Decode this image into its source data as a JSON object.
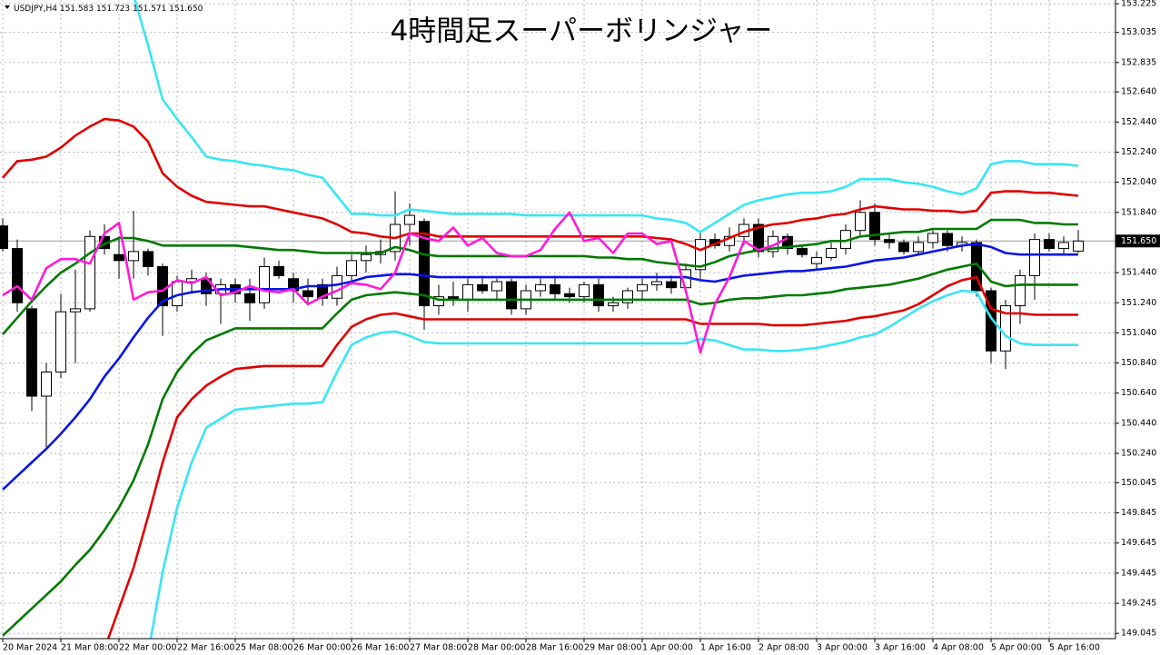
{
  "chart_data": {
    "type": "candlestick",
    "title": "4時間足スーパーボリンジャー",
    "symbol": "USDJPY,H4",
    "header_ohlc": [
      "151.583",
      "151.723",
      "151.571",
      "151.650"
    ],
    "categories": [
      "20 Mar 2024",
      null,
      null,
      null,
      "21 Mar 08:00",
      null,
      null,
      null,
      "22 Mar 00:00",
      null,
      null,
      null,
      "22 Mar 16:00",
      null,
      null,
      null,
      "25 Mar 08:00",
      null,
      null,
      null,
      "26 Mar 00:00",
      null,
      null,
      null,
      "26 Mar 16:00",
      null,
      null,
      null,
      "27 Mar 08:00",
      null,
      null,
      null,
      "28 Mar 00:00",
      null,
      null,
      null,
      "28 Mar 16:00",
      null,
      null,
      null,
      "29 Mar 08:00",
      null,
      null,
      null,
      "1 Apr 00:00",
      null,
      null,
      null,
      "1 Apr 16:00",
      null,
      null,
      null,
      "2 Apr 08:00",
      null,
      null,
      null,
      "3 Apr 00:00",
      null,
      null,
      null,
      "3 Apr 16:00",
      null,
      null,
      null,
      "4 Apr 08:00",
      null,
      null,
      null,
      "5 Apr 00:00",
      null,
      null,
      null,
      "5 Apr 16:00",
      null,
      null
    ],
    "open": [
      151.75,
      151.6,
      151.2,
      150.62,
      150.78,
      151.18,
      151.2,
      151.68,
      151.56,
      151.52,
      151.58,
      151.48,
      151.22,
      151.38,
      151.4,
      151.3,
      151.36,
      151.3,
      151.24,
      151.48,
      151.4,
      151.32,
      151.36,
      151.27,
      151.42,
      151.52,
      151.56,
      151.58,
      151.76,
      151.78,
      151.22,
      151.28,
      151.26,
      151.36,
      151.32,
      151.38,
      151.2,
      151.32,
      151.36,
      151.3,
      151.28,
      151.36,
      151.22,
      151.24,
      151.32,
      151.36,
      151.38,
      151.34,
      151.46,
      151.66,
      151.62,
      151.68,
      151.76,
      151.58,
      151.68,
      151.6,
      151.5,
      151.54,
      151.6,
      151.72,
      151.84,
      151.66,
      151.64,
      151.58,
      151.64,
      151.7,
      151.62,
      151.64,
      151.32,
      150.92,
      151.22,
      151.42,
      151.66,
      151.6,
      151.583
    ],
    "high": [
      151.8,
      151.66,
      151.22,
      150.84,
      151.3,
      151.46,
      151.72,
      151.76,
      151.68,
      151.85,
      151.6,
      151.5,
      151.42,
      151.46,
      151.44,
      151.4,
      151.4,
      151.4,
      151.54,
      151.52,
      151.44,
      151.4,
      151.4,
      151.48,
      151.56,
      151.62,
      151.66,
      151.98,
      151.9,
      151.8,
      151.36,
      151.38,
      151.4,
      151.42,
      151.4,
      151.4,
      151.36,
      151.4,
      151.42,
      151.34,
      151.38,
      151.4,
      151.28,
      151.34,
      151.4,
      151.44,
      151.42,
      151.5,
      151.72,
      151.7,
      151.74,
      151.8,
      151.8,
      151.72,
      151.7,
      151.62,
      151.58,
      151.64,
      151.76,
      151.92,
      151.9,
      151.7,
      151.66,
      151.68,
      151.72,
      151.72,
      151.68,
      151.66,
      151.34,
      151.26,
      151.46,
      151.7,
      151.7,
      151.68,
      151.723
    ],
    "low": [
      151.58,
      151.18,
      150.52,
      150.28,
      150.74,
      150.84,
      151.18,
      151.56,
      151.4,
      151.4,
      151.42,
      151.02,
      151.18,
      151.3,
      151.22,
      151.1,
      151.24,
      151.12,
      151.2,
      151.4,
      151.24,
      151.24,
      151.22,
      151.22,
      151.36,
      151.44,
      151.5,
      151.52,
      151.62,
      151.06,
      151.16,
      151.22,
      151.18,
      151.3,
      151.26,
      151.16,
      151.16,
      151.28,
      151.26,
      151.24,
      151.24,
      151.18,
      151.18,
      151.2,
      151.26,
      151.32,
      151.3,
      151.3,
      151.4,
      151.6,
      151.58,
      151.62,
      151.54,
      151.54,
      151.56,
      151.54,
      151.46,
      151.52,
      151.56,
      151.68,
      151.62,
      151.6,
      151.56,
      151.56,
      151.6,
      151.58,
      151.58,
      151.28,
      150.84,
      150.8,
      151.1,
      151.26,
      151.58,
      151.56,
      151.571
    ],
    "close": [
      151.6,
      151.24,
      150.62,
      150.78,
      151.18,
      151.2,
      151.68,
      151.6,
      151.52,
      151.58,
      151.48,
      151.22,
      151.38,
      151.4,
      151.3,
      151.36,
      151.3,
      151.24,
      151.48,
      151.42,
      151.32,
      151.28,
      151.27,
      151.42,
      151.52,
      151.56,
      151.58,
      151.76,
      151.82,
      151.22,
      151.28,
      151.26,
      151.36,
      151.32,
      151.38,
      151.2,
      151.32,
      151.36,
      151.3,
      151.28,
      151.36,
      151.22,
      151.24,
      151.32,
      151.36,
      151.38,
      151.34,
      151.46,
      151.66,
      151.62,
      151.68,
      151.76,
      151.58,
      151.68,
      151.6,
      151.56,
      151.54,
      151.6,
      151.72,
      151.84,
      151.66,
      151.64,
      151.58,
      151.64,
      151.7,
      151.62,
      151.64,
      151.32,
      150.92,
      151.22,
      151.42,
      151.66,
      151.6,
      151.64,
      151.65
    ],
    "up_color": "#ffffff",
    "down_color": "#000000",
    "lines": [
      {
        "color": "#38e6f4",
        "values": [
          null,
          null,
          null,
          null,
          null,
          null,
          null,
          null,
          null,
          153.28,
          152.95,
          152.59,
          152.46,
          152.34,
          152.21,
          152.19,
          152.18,
          152.16,
          152.15,
          152.13,
          152.12,
          152.09,
          152.07,
          151.95,
          151.83,
          151.83,
          151.82,
          151.82,
          151.86,
          151.85,
          151.84,
          151.83,
          151.83,
          151.83,
          151.83,
          151.83,
          151.82,
          151.82,
          151.82,
          151.82,
          151.82,
          151.82,
          151.82,
          151.82,
          151.82,
          151.8,
          151.79,
          151.77,
          151.71,
          151.77,
          151.83,
          151.89,
          151.92,
          151.94,
          151.96,
          151.97,
          151.97,
          151.98,
          152.01,
          152.06,
          152.06,
          152.06,
          152.04,
          152.03,
          152.01,
          151.98,
          151.96,
          152.0,
          152.16,
          152.18,
          152.18,
          152.16,
          152.16,
          152.16,
          152.15
        ]
      },
      {
        "color": "#e00000",
        "values": [
          152.07,
          152.18,
          152.19,
          152.21,
          152.27,
          152.35,
          152.41,
          152.46,
          152.45,
          152.41,
          152.31,
          152.1,
          152.01,
          151.95,
          151.91,
          151.9,
          151.89,
          151.88,
          151.88,
          151.86,
          151.84,
          151.82,
          151.8,
          151.76,
          151.71,
          151.7,
          151.68,
          151.67,
          151.7,
          151.7,
          151.68,
          151.68,
          151.68,
          151.68,
          151.68,
          151.68,
          151.68,
          151.68,
          151.68,
          151.68,
          151.68,
          151.68,
          151.68,
          151.68,
          151.68,
          151.67,
          151.66,
          151.63,
          151.59,
          151.63,
          151.67,
          151.71,
          151.74,
          151.76,
          151.77,
          151.79,
          151.8,
          151.82,
          151.83,
          151.86,
          151.88,
          151.87,
          151.86,
          151.86,
          151.85,
          151.85,
          151.84,
          151.85,
          151.97,
          151.98,
          151.98,
          151.97,
          151.97,
          151.96,
          151.95
        ]
      },
      {
        "color": "#007a00",
        "values": [
          151.03,
          151.14,
          151.25,
          151.35,
          151.44,
          151.5,
          151.57,
          151.63,
          151.67,
          151.67,
          151.65,
          151.62,
          151.62,
          151.62,
          151.62,
          151.62,
          151.62,
          151.61,
          151.6,
          151.59,
          151.59,
          151.58,
          151.57,
          151.57,
          151.57,
          151.57,
          151.57,
          151.61,
          151.59,
          151.56,
          151.55,
          151.55,
          151.55,
          151.55,
          151.55,
          151.55,
          151.55,
          151.55,
          151.55,
          151.55,
          151.55,
          151.54,
          151.54,
          151.53,
          151.53,
          151.51,
          151.5,
          151.49,
          151.48,
          151.51,
          151.55,
          151.57,
          151.59,
          151.6,
          151.61,
          151.62,
          151.63,
          151.65,
          151.65,
          151.68,
          151.69,
          151.7,
          151.71,
          151.71,
          151.73,
          151.73,
          151.73,
          151.73,
          151.79,
          151.79,
          151.79,
          151.77,
          151.77,
          151.76,
          151.76
        ]
      },
      {
        "color": "#0a14e6",
        "values": [
          150.0,
          150.09,
          150.18,
          150.27,
          150.37,
          150.48,
          150.6,
          150.75,
          150.87,
          151.01,
          151.14,
          151.25,
          151.29,
          151.31,
          151.32,
          151.33,
          151.33,
          151.33,
          151.33,
          151.33,
          151.33,
          151.35,
          151.35,
          151.36,
          151.38,
          151.41,
          151.42,
          151.43,
          151.43,
          151.42,
          151.41,
          151.41,
          151.41,
          151.41,
          151.41,
          151.41,
          151.41,
          151.41,
          151.41,
          151.41,
          151.41,
          151.41,
          151.41,
          151.41,
          151.41,
          151.41,
          151.41,
          151.41,
          151.39,
          151.38,
          151.4,
          151.42,
          151.43,
          151.44,
          151.45,
          151.45,
          151.46,
          151.47,
          151.48,
          151.5,
          151.52,
          151.53,
          151.54,
          151.56,
          151.58,
          151.6,
          151.62,
          151.63,
          151.61,
          151.57,
          151.56,
          151.56,
          151.56,
          151.56,
          151.56
        ]
      },
      {
        "color": "#007a00",
        "values": [
          149.03,
          149.12,
          149.21,
          149.3,
          149.39,
          149.5,
          149.6,
          149.73,
          149.88,
          150.06,
          150.3,
          150.6,
          150.78,
          150.9,
          150.99,
          151.03,
          151.07,
          151.07,
          151.07,
          151.07,
          151.07,
          151.07,
          151.07,
          151.17,
          151.26,
          151.29,
          151.3,
          151.31,
          151.3,
          151.29,
          151.26,
          151.26,
          151.26,
          151.26,
          151.26,
          151.26,
          151.26,
          151.26,
          151.26,
          151.26,
          151.26,
          151.26,
          151.26,
          151.26,
          151.26,
          151.26,
          151.26,
          151.26,
          151.23,
          151.24,
          151.26,
          151.27,
          151.27,
          151.28,
          151.29,
          151.29,
          151.3,
          151.31,
          151.33,
          151.34,
          151.35,
          151.36,
          151.38,
          151.4,
          151.43,
          151.46,
          151.48,
          151.5,
          151.38,
          151.35,
          151.36,
          151.36,
          151.36,
          151.36,
          151.36
        ]
      },
      {
        "color": "#e00000",
        "values": [
          null,
          null,
          null,
          null,
          null,
          null,
          null,
          148.94,
          149.21,
          149.48,
          149.82,
          150.18,
          150.48,
          150.6,
          150.69,
          150.75,
          150.8,
          150.81,
          150.82,
          150.82,
          150.82,
          150.82,
          150.82,
          150.96,
          151.08,
          151.13,
          151.16,
          151.17,
          151.15,
          151.13,
          151.13,
          151.13,
          151.13,
          151.13,
          151.13,
          151.13,
          151.13,
          151.13,
          151.13,
          151.13,
          151.13,
          151.13,
          151.13,
          151.13,
          151.13,
          151.13,
          151.13,
          151.13,
          151.1,
          151.1,
          151.1,
          151.1,
          151.1,
          151.09,
          151.09,
          151.09,
          151.1,
          151.11,
          151.12,
          151.14,
          151.15,
          151.17,
          151.19,
          151.23,
          151.29,
          151.35,
          151.39,
          151.41,
          151.2,
          151.17,
          151.17,
          151.16,
          151.16,
          151.16,
          151.16
        ]
      },
      {
        "color": "#38e6f4",
        "values": [
          null,
          null,
          null,
          null,
          null,
          null,
          null,
          null,
          null,
          null,
          148.91,
          149.45,
          149.88,
          150.18,
          150.41,
          150.47,
          150.53,
          150.54,
          150.55,
          150.56,
          150.57,
          150.57,
          150.58,
          150.78,
          150.96,
          151.01,
          151.04,
          151.05,
          151.02,
          150.98,
          150.97,
          150.97,
          150.97,
          150.97,
          150.97,
          150.97,
          150.97,
          150.97,
          150.97,
          150.97,
          150.97,
          150.97,
          150.97,
          150.97,
          150.97,
          150.97,
          150.97,
          150.97,
          151.0,
          150.99,
          150.96,
          150.93,
          150.93,
          150.92,
          150.92,
          150.93,
          150.94,
          150.96,
          150.98,
          151.01,
          151.03,
          151.08,
          151.14,
          151.2,
          151.25,
          151.29,
          151.32,
          151.31,
          151.14,
          151.02,
          150.97,
          150.96,
          150.96,
          150.96,
          150.96
        ]
      },
      {
        "color": "#ff1ad9",
        "values": [
          151.29,
          151.35,
          151.26,
          151.47,
          151.53,
          151.53,
          151.5,
          151.7,
          151.77,
          151.26,
          151.31,
          151.32,
          151.39,
          151.37,
          151.41,
          151.29,
          151.31,
          151.35,
          151.32,
          151.31,
          151.33,
          151.23,
          151.28,
          151.32,
          151.37,
          151.36,
          151.33,
          151.44,
          151.7,
          151.67,
          151.65,
          151.74,
          151.62,
          151.67,
          151.57,
          151.55,
          151.55,
          151.59,
          151.73,
          151.84,
          151.65,
          151.67,
          151.57,
          151.7,
          151.7,
          151.63,
          151.65,
          151.32,
          150.91,
          151.23,
          151.41,
          151.65,
          151.59,
          151.62,
          151.67,
          null,
          null,
          null,
          null,
          null,
          null,
          null,
          null,
          null,
          null,
          null,
          null,
          null,
          null,
          null,
          null,
          null,
          null,
          null,
          null
        ]
      }
    ],
    "ylim": [
      149.01,
      153.25
    ],
    "yticks": [
      153.225,
      153.035,
      152.835,
      {
        "value": 152.64,
        "label": "152.640"
      },
      {
        "value": 152.44,
        "label": "152.440"
      },
      {
        "value": 152.24,
        "label": "152.240"
      },
      {
        "value": 152.04,
        "label": "152.040"
      },
      {
        "value": 151.84,
        "label": "151.840"
      },
      {
        "value": 151.44,
        "label": "151.440"
      },
      {
        "value": 151.24,
        "label": "151.240"
      },
      {
        "value": 151.04,
        "label": "151.040"
      },
      {
        "value": 150.84,
        "label": "150.840"
      },
      {
        "value": 150.64,
        "label": "150.640"
      },
      {
        "value": 150.44,
        "label": "150.440"
      },
      {
        "value": 150.24,
        "label": "150.240"
      },
      150.045,
      149.845,
      149.645,
      149.445,
      149.245,
      149.045
    ],
    "last_price": {
      "value": 151.65,
      "label": "151.650"
    },
    "grid": true
  }
}
